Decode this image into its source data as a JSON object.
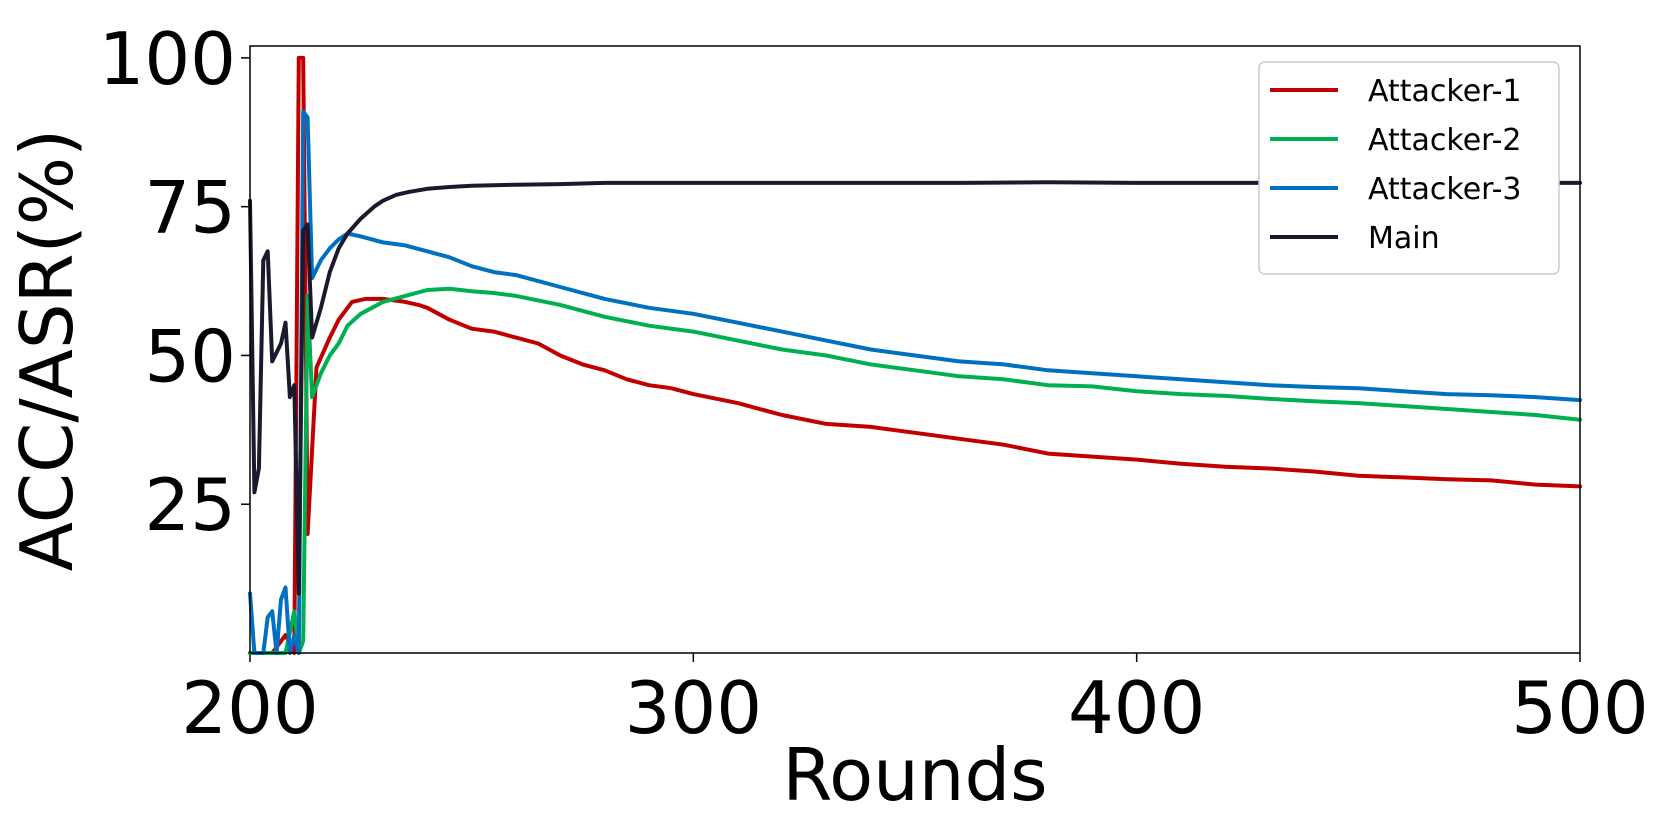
{
  "chart_data": {
    "type": "line",
    "title": "",
    "xlabel": "Rounds",
    "ylabel": "ACC/ASR(%)",
    "xlim": [
      200,
      500
    ],
    "ylim": [
      0,
      102
    ],
    "xticks": [
      200,
      300,
      400,
      500
    ],
    "yticks": [
      25,
      50,
      75,
      100
    ],
    "grid": false,
    "legend_position": "top-right",
    "series": [
      {
        "name": "Attacker-1",
        "color": "#c00000",
        "points": [
          [
            200,
            0
          ],
          [
            205,
            0
          ],
          [
            208,
            3
          ],
          [
            210,
            0
          ],
          [
            211,
            100
          ],
          [
            212,
            100
          ],
          [
            213,
            20
          ],
          [
            215,
            48
          ],
          [
            218,
            53
          ],
          [
            220,
            56
          ],
          [
            223,
            59
          ],
          [
            226,
            59.5
          ],
          [
            230,
            59.5
          ],
          [
            235,
            59
          ],
          [
            238,
            58.5
          ],
          [
            240,
            58
          ],
          [
            245,
            56
          ],
          [
            250,
            54.5
          ],
          [
            255,
            54
          ],
          [
            260,
            53
          ],
          [
            265,
            52
          ],
          [
            270,
            50
          ],
          [
            275,
            48.5
          ],
          [
            280,
            47.5
          ],
          [
            285,
            46
          ],
          [
            290,
            45
          ],
          [
            295,
            44.5
          ],
          [
            300,
            43.5
          ],
          [
            310,
            42
          ],
          [
            320,
            40
          ],
          [
            330,
            38.5
          ],
          [
            340,
            38
          ],
          [
            350,
            37
          ],
          [
            360,
            36
          ],
          [
            370,
            35
          ],
          [
            380,
            33.5
          ],
          [
            390,
            33
          ],
          [
            400,
            32.5
          ],
          [
            410,
            31.8
          ],
          [
            420,
            31.3
          ],
          [
            430,
            31
          ],
          [
            440,
            30.5
          ],
          [
            450,
            29.8
          ],
          [
            460,
            29.5
          ],
          [
            470,
            29.2
          ],
          [
            480,
            29
          ],
          [
            490,
            28.3
          ],
          [
            500,
            28
          ]
        ]
      },
      {
        "name": "Attacker-2",
        "color": "#00b050",
        "points": [
          [
            200,
            0
          ],
          [
            205,
            0
          ],
          [
            208,
            0
          ],
          [
            210,
            7
          ],
          [
            211,
            0
          ],
          [
            212,
            2
          ],
          [
            213,
            60
          ],
          [
            214,
            43
          ],
          [
            216,
            47
          ],
          [
            218,
            50
          ],
          [
            220,
            52
          ],
          [
            222,
            55
          ],
          [
            225,
            57
          ],
          [
            230,
            59
          ],
          [
            235,
            60
          ],
          [
            240,
            61
          ],
          [
            245,
            61.2
          ],
          [
            250,
            60.8
          ],
          [
            255,
            60.5
          ],
          [
            260,
            60
          ],
          [
            270,
            58.5
          ],
          [
            280,
            56.5
          ],
          [
            290,
            55
          ],
          [
            300,
            54
          ],
          [
            310,
            52.5
          ],
          [
            320,
            51
          ],
          [
            330,
            50
          ],
          [
            340,
            48.5
          ],
          [
            350,
            47.5
          ],
          [
            360,
            46.5
          ],
          [
            370,
            46
          ],
          [
            380,
            45
          ],
          [
            390,
            44.8
          ],
          [
            400,
            44
          ],
          [
            410,
            43.5
          ],
          [
            420,
            43.2
          ],
          [
            430,
            42.7
          ],
          [
            440,
            42.3
          ],
          [
            450,
            42
          ],
          [
            460,
            41.5
          ],
          [
            470,
            41
          ],
          [
            480,
            40.5
          ],
          [
            490,
            40
          ],
          [
            500,
            39.2
          ]
        ]
      },
      {
        "name": "Attacker-3",
        "color": "#0070c0",
        "points": [
          [
            200,
            10
          ],
          [
            201,
            0
          ],
          [
            203,
            0
          ],
          [
            204,
            6
          ],
          [
            205,
            7
          ],
          [
            206,
            0
          ],
          [
            207,
            9
          ],
          [
            208,
            11
          ],
          [
            209,
            0
          ],
          [
            210,
            3
          ],
          [
            211,
            0
          ],
          [
            212,
            91
          ],
          [
            213,
            90
          ],
          [
            214,
            63
          ],
          [
            216,
            66
          ],
          [
            218,
            68
          ],
          [
            220,
            69.5
          ],
          [
            222,
            70.5
          ],
          [
            225,
            70
          ],
          [
            230,
            69
          ],
          [
            235,
            68.5
          ],
          [
            240,
            67.5
          ],
          [
            245,
            66.5
          ],
          [
            250,
            65
          ],
          [
            255,
            64
          ],
          [
            260,
            63.5
          ],
          [
            270,
            61.5
          ],
          [
            280,
            59.5
          ],
          [
            290,
            58
          ],
          [
            300,
            57
          ],
          [
            310,
            55.5
          ],
          [
            320,
            54
          ],
          [
            330,
            52.5
          ],
          [
            340,
            51
          ],
          [
            350,
            50
          ],
          [
            360,
            49
          ],
          [
            370,
            48.5
          ],
          [
            380,
            47.5
          ],
          [
            390,
            47
          ],
          [
            400,
            46.5
          ],
          [
            410,
            46
          ],
          [
            420,
            45.5
          ],
          [
            430,
            45
          ],
          [
            440,
            44.7
          ],
          [
            450,
            44.5
          ],
          [
            460,
            44
          ],
          [
            470,
            43.5
          ],
          [
            480,
            43.3
          ],
          [
            490,
            43
          ],
          [
            500,
            42.5
          ]
        ]
      },
      {
        "name": "Main",
        "color": "#1a1a2e",
        "points": [
          [
            200,
            76
          ],
          [
            201,
            27
          ],
          [
            202,
            31
          ],
          [
            203,
            66
          ],
          [
            204,
            67.5
          ],
          [
            205,
            49
          ],
          [
            207,
            52
          ],
          [
            208,
            55.5
          ],
          [
            209,
            43
          ],
          [
            210,
            45
          ],
          [
            211,
            10
          ],
          [
            212,
            71
          ],
          [
            213,
            72
          ],
          [
            214,
            53
          ],
          [
            216,
            58
          ],
          [
            218,
            64
          ],
          [
            220,
            68
          ],
          [
            222,
            70.5
          ],
          [
            225,
            73
          ],
          [
            228,
            75
          ],
          [
            230,
            76
          ],
          [
            233,
            77
          ],
          [
            236,
            77.5
          ],
          [
            240,
            78
          ],
          [
            245,
            78.3
          ],
          [
            250,
            78.5
          ],
          [
            260,
            78.7
          ],
          [
            270,
            78.8
          ],
          [
            280,
            79
          ],
          [
            300,
            79
          ],
          [
            320,
            79
          ],
          [
            340,
            79
          ],
          [
            360,
            79
          ],
          [
            380,
            79.1
          ],
          [
            400,
            79
          ],
          [
            420,
            79
          ],
          [
            440,
            79
          ],
          [
            460,
            79
          ],
          [
            480,
            79
          ],
          [
            500,
            79
          ]
        ]
      }
    ]
  }
}
